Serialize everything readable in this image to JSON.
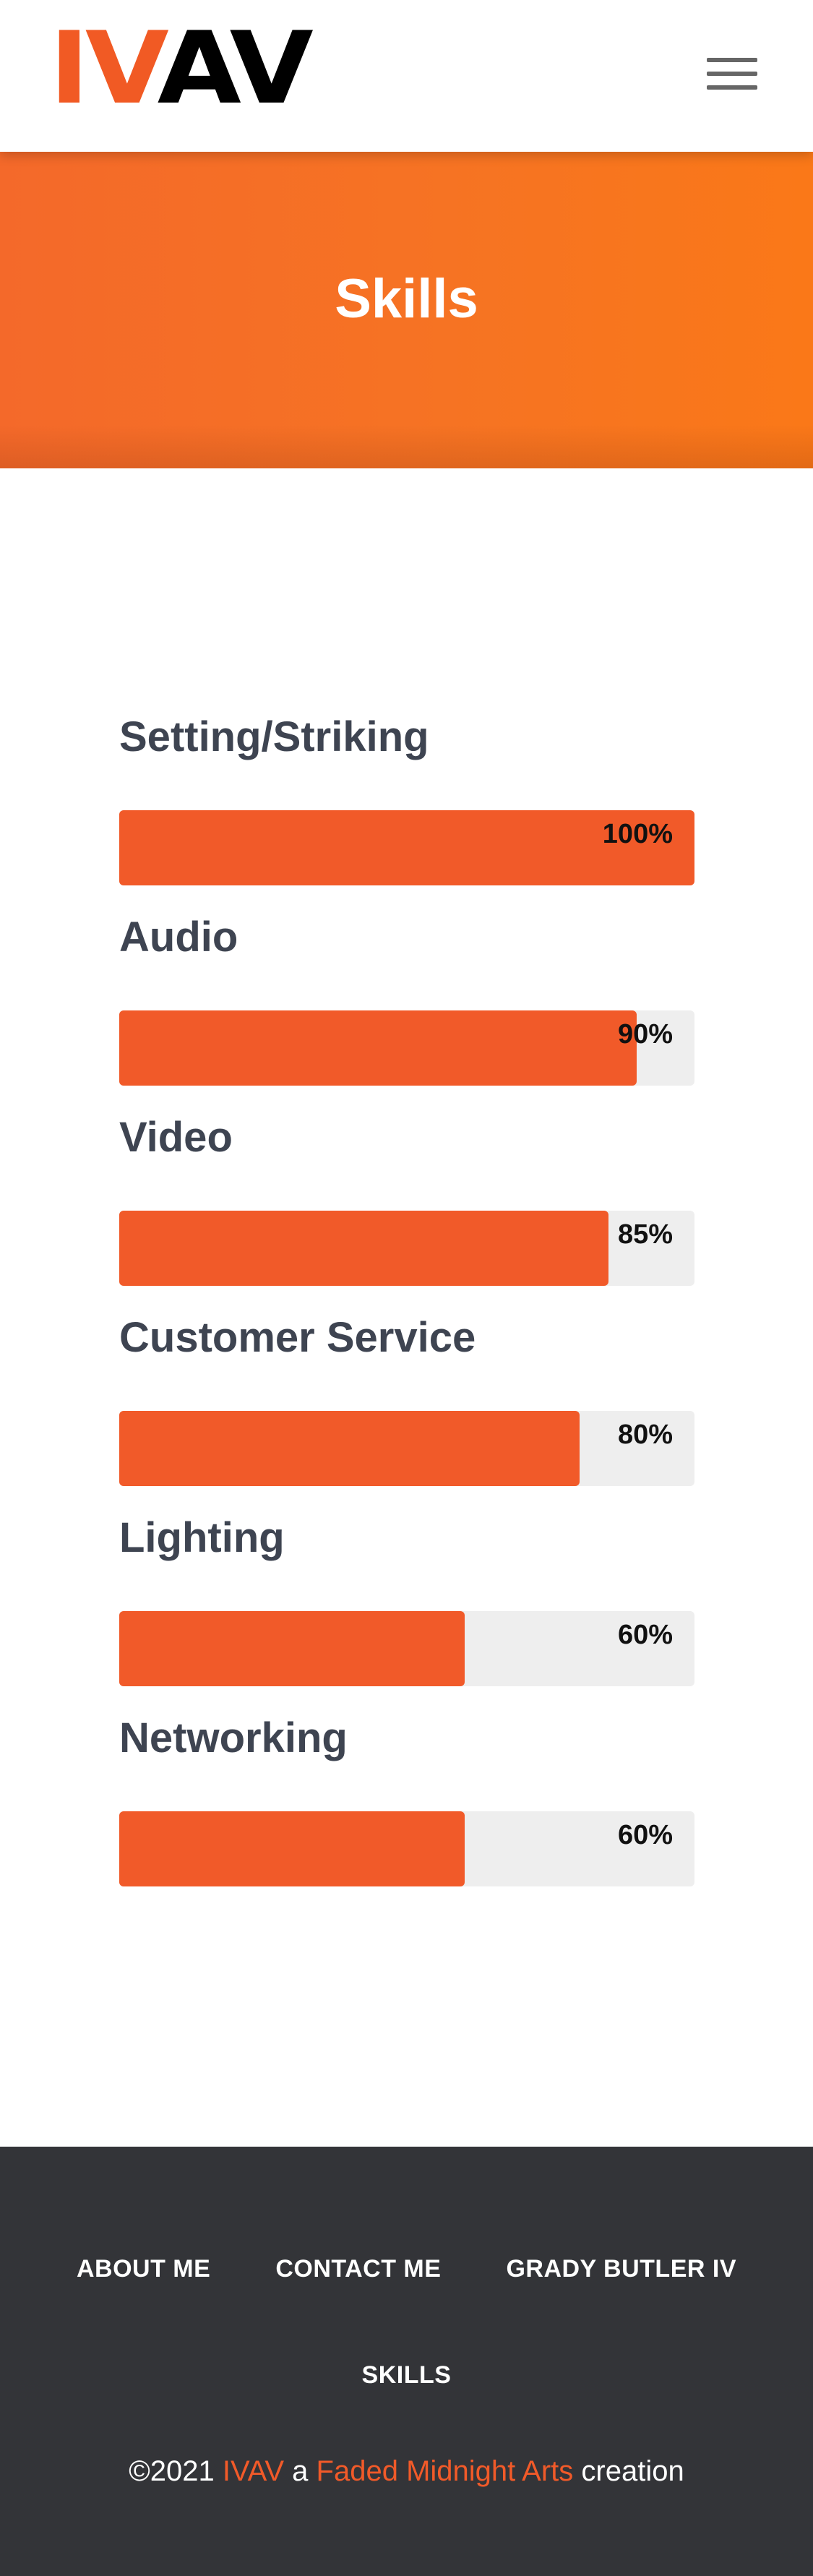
{
  "header": {
    "logo_part1": "IV",
    "logo_part2": "AV",
    "menu_icon": "hamburger-menu-icon"
  },
  "hero": {
    "title": "Skills"
  },
  "skills": [
    {
      "label": "Setting/Striking",
      "percent": 100,
      "percent_label": "100%"
    },
    {
      "label": "Audio",
      "percent": 90,
      "percent_label": "90%"
    },
    {
      "label": "Video",
      "percent": 85,
      "percent_label": "85%"
    },
    {
      "label": "Customer Service",
      "percent": 80,
      "percent_label": "80%"
    },
    {
      "label": "Lighting",
      "percent": 60,
      "percent_label": "60%"
    },
    {
      "label": "Networking",
      "percent": 60,
      "percent_label": "60%"
    }
  ],
  "footer": {
    "nav": [
      "ABOUT ME",
      "CONTACT ME",
      "GRADY BUTLER IV"
    ],
    "nav2": "SKILLS",
    "copyright_prefix": "©2021 ",
    "copyright_brand": "IVAV",
    "copyright_mid": " a ",
    "copyright_link": "Faded Midnight Arts",
    "copyright_suffix": " creation"
  },
  "colors": {
    "accent": "#f15a29",
    "hero_gradient_start": "#f4692a",
    "hero_gradient_end": "#fa7818",
    "footer_bg": "#333438",
    "track": "#eeeeee",
    "label_text": "#3e4451"
  }
}
